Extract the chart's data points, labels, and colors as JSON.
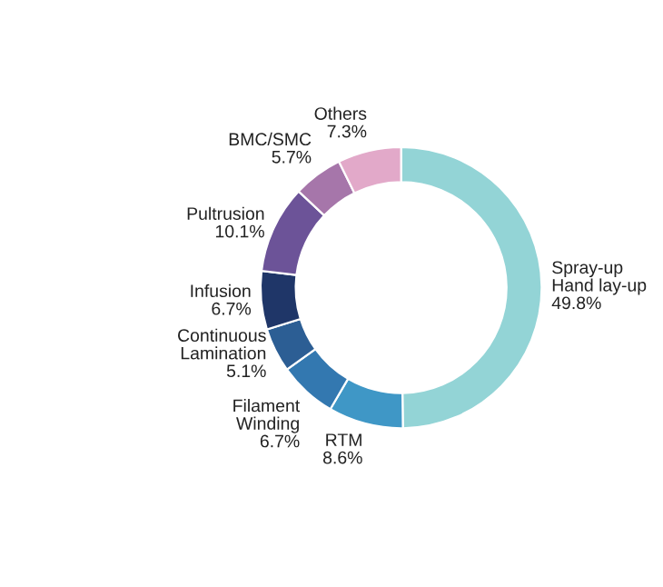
{
  "chart_data": {
    "type": "donut",
    "categories": [
      "Spray-up\nHand lay-up",
      "RTM",
      "Filament\nWinding",
      "Continuous\nLamination",
      "Infusion",
      "Pultrusion",
      "BMC/SMC",
      "Others"
    ],
    "values": [
      49.8,
      8.6,
      6.7,
      5.1,
      6.7,
      10.1,
      5.7,
      7.3
    ],
    "value_labels": [
      "49.8%",
      "8.6%",
      "6.7%",
      "5.1%",
      "6.7%",
      "10.1%",
      "5.7%",
      "7.3%"
    ],
    "colors": [
      "#93d4d6",
      "#3f97c6",
      "#3378b0",
      "#2c5e94",
      "#1f3668",
      "#6c5398",
      "#a676aa",
      "#e2a9c9"
    ],
    "legend": false
  }
}
